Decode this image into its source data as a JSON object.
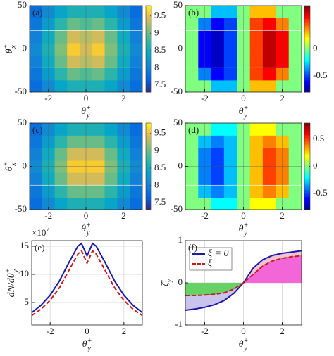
{
  "chart_data": [
    {
      "type": "heatmap",
      "panel_label": "(a)",
      "colormap": "parula",
      "grid": true,
      "xlabel": {
        "base": "θ",
        "sup": "+",
        "sub": "y"
      },
      "ylabel": {
        "base": "θ",
        "sup": "+",
        "sub": "x"
      },
      "xlim": [
        -3,
        3
      ],
      "ylim": [
        -50,
        50
      ],
      "xticks": [
        -2,
        0,
        2
      ],
      "yticks": [
        -50,
        0,
        50
      ],
      "clim": [
        7.3,
        9.8
      ],
      "cticks": [
        7.5,
        8,
        8.5,
        9,
        9.5
      ],
      "x": [
        -2.67,
        -2,
        -1.33,
        -0.67,
        0,
        0.67,
        1.33,
        2,
        2.67
      ],
      "y": [
        -43,
        -29,
        -14,
        0,
        14,
        29,
        43
      ],
      "z": [
        [
          7.8,
          8.1,
          8.4,
          8.6,
          8.6,
          8.6,
          8.4,
          8.1,
          7.8
        ],
        [
          7.9,
          8.3,
          8.7,
          9.0,
          8.9,
          9.0,
          8.7,
          8.3,
          7.9
        ],
        [
          8.0,
          8.5,
          9.0,
          9.4,
          9.3,
          9.4,
          9.0,
          8.5,
          8.0
        ],
        [
          8.1,
          8.6,
          9.1,
          9.6,
          9.4,
          9.6,
          9.1,
          8.6,
          8.1
        ],
        [
          8.0,
          8.5,
          9.0,
          9.4,
          9.3,
          9.4,
          9.0,
          8.5,
          8.0
        ],
        [
          7.9,
          8.3,
          8.7,
          9.0,
          8.9,
          9.0,
          8.7,
          8.3,
          7.9
        ],
        [
          7.8,
          8.1,
          8.4,
          8.6,
          8.6,
          8.6,
          8.4,
          8.1,
          7.8
        ]
      ]
    },
    {
      "type": "heatmap",
      "panel_label": "(b)",
      "colormap": "jet",
      "grid": true,
      "xlabel": {
        "base": "θ",
        "sup": "+",
        "sub": "y"
      },
      "xlim": [
        -3,
        3
      ],
      "ylim": [
        -50,
        50
      ],
      "xticks": [
        -2,
        0,
        2
      ],
      "yticks": [
        -50,
        0,
        50
      ],
      "clim": [
        -0.8,
        0.8
      ],
      "cticks": [
        0,
        -0.5
      ],
      "x": [
        -2.67,
        -2,
        -1.33,
        -0.67,
        0,
        0.67,
        1.33,
        2,
        2.67
      ],
      "y": [
        -43,
        -29,
        -14,
        0,
        14,
        29,
        43
      ],
      "z": [
        [
          0,
          0,
          -0.3,
          -0.3,
          0,
          0.3,
          0.3,
          0,
          0
        ],
        [
          0,
          -0.4,
          -0.6,
          -0.5,
          0,
          0.5,
          0.6,
          0.4,
          0
        ],
        [
          0,
          -0.6,
          -0.7,
          -0.5,
          0,
          0.5,
          0.7,
          0.6,
          0
        ],
        [
          0,
          -0.6,
          -0.7,
          -0.5,
          0,
          0.5,
          0.7,
          0.6,
          0
        ],
        [
          0,
          -0.6,
          -0.7,
          -0.5,
          0,
          0.5,
          0.7,
          0.6,
          0
        ],
        [
          0,
          -0.4,
          -0.6,
          -0.5,
          0,
          0.5,
          0.6,
          0.4,
          0
        ],
        [
          0,
          0,
          -0.3,
          -0.3,
          0,
          0.3,
          0.3,
          0,
          0
        ]
      ]
    },
    {
      "type": "heatmap",
      "panel_label": "(c)",
      "colormap": "parula",
      "grid": true,
      "xlabel": {
        "base": "θ",
        "sup": "+",
        "sub": "y"
      },
      "ylabel": {
        "base": "θ",
        "sup": "+",
        "sub": "x"
      },
      "xlim": [
        -3,
        3
      ],
      "ylim": [
        -50,
        50
      ],
      "xticks": [
        -2,
        0,
        2
      ],
      "yticks": [
        -50,
        0,
        50
      ],
      "clim": [
        7.3,
        9.8
      ],
      "cticks": [
        7.5,
        8,
        8.5,
        9,
        9.5
      ],
      "x": [
        -2.67,
        -2,
        -1.33,
        -0.67,
        0,
        0.67,
        1.33,
        2,
        2.67
      ],
      "y": [
        -43,
        -29,
        -14,
        0,
        14,
        29,
        43
      ],
      "z": [
        [
          7.8,
          8.1,
          8.4,
          8.6,
          8.6,
          8.6,
          8.4,
          8.1,
          7.8
        ],
        [
          7.9,
          8.3,
          8.7,
          9.0,
          9.0,
          9.0,
          8.7,
          8.3,
          7.9
        ],
        [
          8.0,
          8.5,
          9.0,
          9.4,
          9.4,
          9.4,
          9.0,
          8.5,
          8.0
        ],
        [
          8.1,
          8.6,
          9.1,
          9.6,
          9.6,
          9.6,
          9.1,
          8.6,
          8.1
        ],
        [
          8.0,
          8.5,
          9.0,
          9.4,
          9.4,
          9.4,
          9.0,
          8.5,
          8.0
        ],
        [
          7.9,
          8.3,
          8.7,
          9.0,
          9.0,
          9.0,
          8.7,
          8.3,
          7.9
        ],
        [
          7.8,
          8.1,
          8.4,
          8.6,
          8.6,
          8.6,
          8.4,
          8.1,
          7.8
        ]
      ]
    },
    {
      "type": "heatmap",
      "panel_label": "(d)",
      "colormap": "jet",
      "grid": true,
      "xlabel": {
        "base": "θ",
        "sup": "+",
        "sub": "y"
      },
      "xlim": [
        -3,
        3
      ],
      "ylim": [
        -50,
        50
      ],
      "xticks": [
        -2,
        0,
        2
      ],
      "yticks": [
        -50,
        0,
        50
      ],
      "clim": [
        -0.8,
        0.8
      ],
      "cticks": [
        0.5,
        0,
        -0.5
      ],
      "x": [
        -2.67,
        -2,
        -1.33,
        -0.67,
        0,
        0.67,
        1.33,
        2,
        2.67
      ],
      "y": [
        -43,
        -29,
        -14,
        0,
        14,
        29,
        43
      ],
      "z": [
        [
          0,
          0,
          -0.2,
          -0.2,
          0,
          0.2,
          0.2,
          0,
          0
        ],
        [
          0,
          -0.3,
          -0.4,
          -0.3,
          0,
          0.3,
          0.4,
          0.3,
          0
        ],
        [
          0,
          -0.4,
          -0.5,
          -0.3,
          0,
          0.3,
          0.5,
          0.4,
          0
        ],
        [
          0,
          -0.4,
          -0.5,
          -0.3,
          0,
          0.3,
          0.5,
          0.4,
          0
        ],
        [
          0,
          -0.4,
          -0.5,
          -0.3,
          0,
          0.3,
          0.5,
          0.4,
          0
        ],
        [
          0,
          -0.3,
          -0.4,
          -0.3,
          0,
          0.3,
          0.4,
          0.3,
          0
        ],
        [
          0,
          0,
          -0.2,
          -0.2,
          0,
          0.2,
          0.2,
          0,
          0
        ]
      ]
    },
    {
      "type": "line",
      "panel_label": "(e)",
      "grid": true,
      "xlabel": {
        "base": "θ",
        "sup": "+",
        "sub": "y"
      },
      "ylabel": {
        "base": "dN/dθ",
        "sup": "+",
        "sub": "y"
      },
      "y_multiplier": {
        "base": "×10",
        "sup": "7"
      },
      "xlim": [
        -3,
        3
      ],
      "ylim": [
        1,
        16
      ],
      "xticks": [
        -2,
        0,
        2
      ],
      "yticks": [
        5,
        10,
        15
      ],
      "x": [
        -3,
        -2.5,
        -2,
        -1.5,
        -1,
        -0.5,
        -0.3,
        0,
        0.3,
        0.5,
        1,
        1.5,
        2,
        2.5,
        3
      ],
      "series": [
        {
          "color": "#1a1aa6",
          "dash": false,
          "values": [
            3.2,
            4.5,
            6.3,
            8.8,
            12.0,
            15.0,
            15.5,
            13.3,
            15.5,
            15.0,
            12.0,
            8.8,
            6.3,
            4.5,
            3.2
          ]
        },
        {
          "color": "#d01818",
          "dash": true,
          "values": [
            2.7,
            3.8,
            5.4,
            7.6,
            10.6,
            13.6,
            14.2,
            12.0,
            14.2,
            13.6,
            10.6,
            7.6,
            5.4,
            3.8,
            2.7
          ]
        }
      ]
    },
    {
      "type": "line",
      "panel_label": "(f)",
      "grid": true,
      "legend": "upper left",
      "fill_colors": [
        "#66d266",
        "#f266d8",
        "#c9c3ee",
        "#f3c3d3"
      ],
      "xlabel": {
        "base": "θ",
        "sup": "+",
        "sub": "y"
      },
      "ylabel": {
        "base": "ζ̄",
        "sub": "y"
      },
      "xlim": [
        -3,
        3
      ],
      "ylim": [
        -1,
        1
      ],
      "xticks": [
        -2,
        0,
        2
      ],
      "yticks": [
        -1,
        0,
        1
      ],
      "x": [
        -3,
        -2.5,
        -2,
        -1.5,
        -1,
        -0.5,
        0,
        0.5,
        1,
        1.5,
        2,
        2.5,
        3
      ],
      "series": [
        {
          "name": "ξ = 0",
          "color": "#1a1aa6",
          "dash": false,
          "values": [
            -0.65,
            -0.62,
            -0.58,
            -0.52,
            -0.42,
            -0.25,
            0,
            0.35,
            0.55,
            0.65,
            0.7,
            0.73,
            0.76
          ]
        },
        {
          "name": "ξ",
          "color": "#d01818",
          "dash": true,
          "values": [
            -0.3,
            -0.3,
            -0.29,
            -0.27,
            -0.24,
            -0.15,
            0,
            0.2,
            0.4,
            0.52,
            0.58,
            0.62,
            0.64
          ]
        }
      ]
    }
  ]
}
